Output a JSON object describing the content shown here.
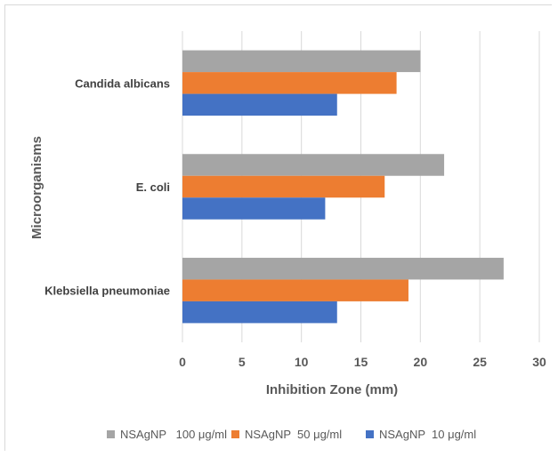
{
  "chart_data": {
    "type": "bar",
    "orientation": "horizontal",
    "categories": [
      "Klebsiella pneumoniae",
      "E. coli",
      "Candida albicans"
    ],
    "series": [
      {
        "name": "NSAgNP  10 μg/ml",
        "color": "#4472c4",
        "values": [
          13,
          12,
          13
        ]
      },
      {
        "name": "NSAgNP  50 μg/ml",
        "color": "#ed7d31",
        "values": [
          19,
          17,
          18
        ]
      },
      {
        "name": "NSAgNP   100 μg/ml",
        "color": "#a5a5a5",
        "values": [
          27,
          22,
          20
        ]
      }
    ],
    "xlabel": "Inhibition Zone (mm)",
    "ylabel": "Microorganisms",
    "xlim": [
      0,
      30
    ],
    "xticks": [
      "0",
      "5",
      "10",
      "15",
      "20",
      "25",
      "30"
    ],
    "grid": true,
    "legend_position": "bottom",
    "legend_order": [
      "NSAgNP   100 μg/ml",
      "NSAgNP  50 μg/ml",
      "NSAgNP  10 μg/ml"
    ]
  }
}
